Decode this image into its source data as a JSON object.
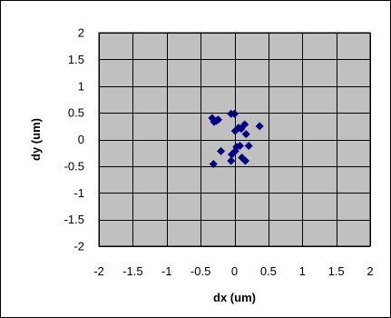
{
  "chart_data": {
    "type": "scatter",
    "title": "",
    "xlabel": "dx  (um)",
    "ylabel": "dy (um)",
    "xlim": [
      -2,
      2
    ],
    "ylim": [
      -2,
      2
    ],
    "x_ticks": [
      "-2",
      "-1.5",
      "-1",
      "-0.5",
      "0",
      "0.5",
      "1",
      "1.5",
      "2"
    ],
    "y_ticks": [
      "2",
      "1.5",
      "1",
      "0.5",
      "0",
      "-0.5",
      "-1",
      "-1.5",
      "-2"
    ],
    "grid": true,
    "plot_background": "#c0c0c0",
    "marker_color": "#000080",
    "marker": "diamond",
    "points": [
      {
        "x": -0.33,
        "y": 0.4
      },
      {
        "x": -0.27,
        "y": 0.35
      },
      {
        "x": -0.24,
        "y": 0.37
      },
      {
        "x": -0.3,
        "y": 0.33
      },
      {
        "x": -0.05,
        "y": 0.48
      },
      {
        "x": 0.0,
        "y": 0.48
      },
      {
        "x": 0.01,
        "y": 0.16
      },
      {
        "x": 0.06,
        "y": 0.22
      },
      {
        "x": 0.1,
        "y": 0.2
      },
      {
        "x": 0.15,
        "y": 0.28
      },
      {
        "x": 0.17,
        "y": 0.1
      },
      {
        "x": 0.37,
        "y": 0.25
      },
      {
        "x": 0.21,
        "y": -0.12
      },
      {
        "x": 0.03,
        "y": -0.14
      },
      {
        "x": 0.08,
        "y": -0.12
      },
      {
        "x": 0.01,
        "y": -0.22
      },
      {
        "x": -0.04,
        "y": -0.28
      },
      {
        "x": -0.2,
        "y": -0.22
      },
      {
        "x": -0.31,
        "y": -0.46
      },
      {
        "x": -0.05,
        "y": -0.4
      },
      {
        "x": 0.11,
        "y": -0.34
      },
      {
        "x": 0.16,
        "y": -0.4
      }
    ]
  }
}
